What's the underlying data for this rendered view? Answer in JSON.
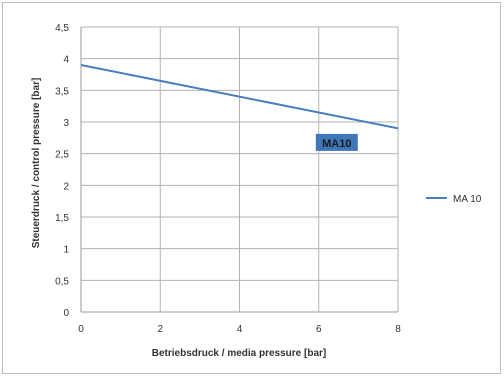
{
  "chart_data": {
    "type": "line",
    "x": [
      0,
      8
    ],
    "series": [
      {
        "name": "MA 10",
        "values": [
          3.9,
          2.9
        ],
        "color": "#4a7ebb"
      }
    ],
    "xlabel": "Betriebsdruck / media pressure [bar]",
    "ylabel": "Steuerdruck  / control pressure [bar]",
    "xlim": [
      0,
      8
    ],
    "ylim": [
      0,
      4.5
    ],
    "xticks": [
      "0",
      "2",
      "4",
      "6",
      "8"
    ],
    "yticks": [
      "0",
      "0,5",
      "1",
      "1,5",
      "2",
      "2,5",
      "3",
      "3,5",
      "4",
      "4,5"
    ],
    "grid": true,
    "legend": "right",
    "annotation": {
      "text": "MA10",
      "x": 5.9,
      "y": 2.67,
      "background": "#3f76b8"
    }
  }
}
